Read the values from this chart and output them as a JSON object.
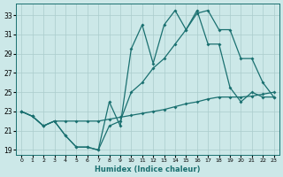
{
  "xlabel": "Humidex (Indice chaleur)",
  "xlim": [
    -0.5,
    23.5
  ],
  "ylim": [
    18.5,
    34.2
  ],
  "yticks": [
    19,
    21,
    23,
    25,
    27,
    29,
    31,
    33
  ],
  "xticks": [
    0,
    1,
    2,
    3,
    4,
    5,
    6,
    7,
    8,
    9,
    10,
    11,
    12,
    13,
    14,
    15,
    16,
    17,
    18,
    19,
    20,
    21,
    22,
    23
  ],
  "bg_color": "#cce8e8",
  "grid_color": "#aacccc",
  "line_color": "#1a7070",
  "line1_y": [
    23.0,
    22.5,
    21.5,
    22.0,
    20.5,
    19.3,
    19.3,
    19.0,
    24.0,
    21.5,
    29.5,
    32.0,
    28.0,
    32.0,
    33.5,
    31.5,
    33.2,
    33.5,
    31.5,
    31.5,
    28.5,
    28.5,
    26.0,
    24.5
  ],
  "line2_y": [
    23.0,
    22.5,
    21.5,
    22.0,
    20.5,
    19.3,
    19.3,
    19.0,
    21.5,
    22.0,
    25.0,
    26.0,
    27.5,
    28.5,
    30.0,
    31.5,
    33.5,
    30.0,
    30.0,
    25.5,
    24.0,
    25.0,
    24.5,
    24.5
  ],
  "line3_y": [
    23.0,
    22.5,
    21.5,
    22.0,
    22.0,
    22.0,
    22.0,
    22.0,
    22.2,
    22.4,
    22.6,
    22.8,
    23.0,
    23.2,
    23.5,
    23.8,
    24.0,
    24.3,
    24.5,
    24.5,
    24.5,
    24.6,
    24.8,
    25.0
  ]
}
